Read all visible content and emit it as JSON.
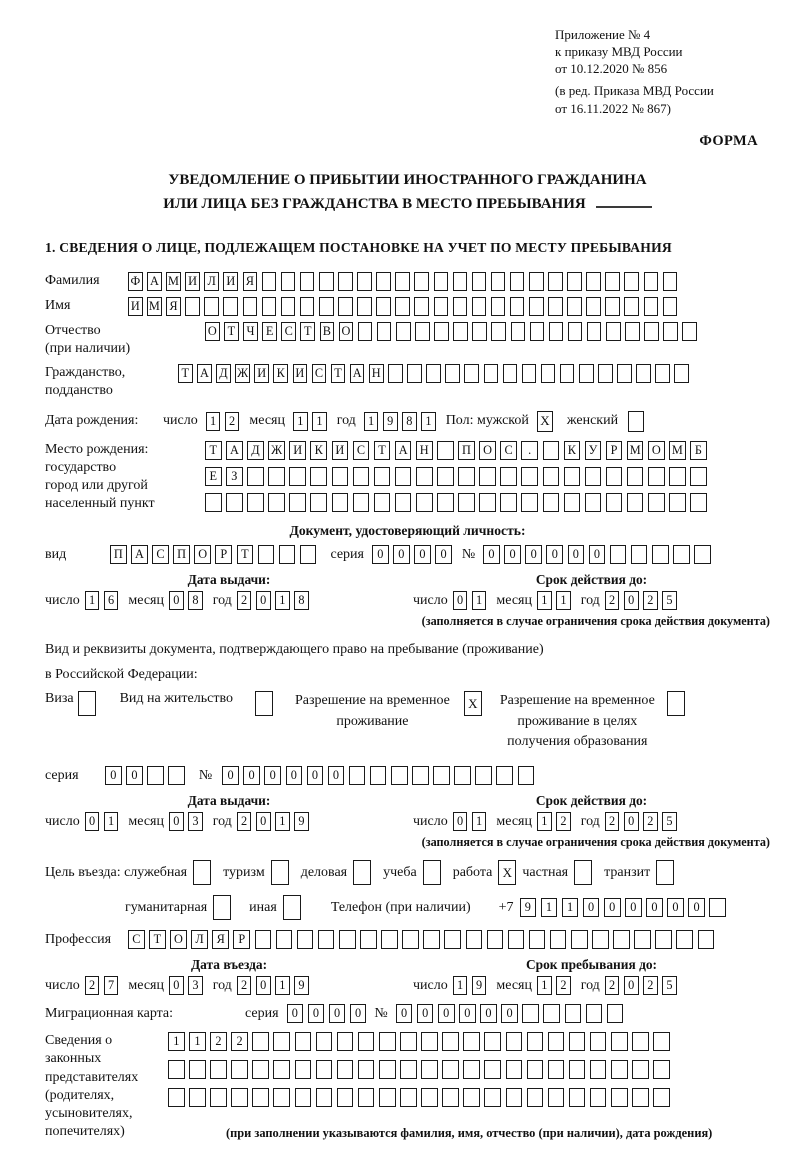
{
  "header": {
    "ref_lines": "Приложение № 4\nк приказу МВД России\nот 10.12.2020 № 856",
    "ref_lines2": "(в ред. Приказа МВД России\nот 16.11.2022 № 867)",
    "forma": "ФОРМА"
  },
  "title": {
    "line1": "УВЕДОМЛЕНИЕ О ПРИБЫТИИ ИНОСТРАННОГО ГРАЖДАНИНА",
    "line2": "ИЛИ ЛИЦА БЕЗ ГРАЖДАНСТВА В МЕСТО ПРЕБЫВАНИЯ",
    "section1": "1. СВЕДЕНИЯ О ЛИЦЕ, ПОДЛЕЖАЩЕМ ПОСТАНОВКЕ НА УЧЕТ ПО МЕСТУ ПРЕБЫВАНИЯ"
  },
  "labels": {
    "surname": "Фамилия",
    "name": "Имя",
    "patronymic": "Отчество\n(при наличии)",
    "citizenship": "Гражданство,\nподданство",
    "birth_date": "Дата рождения:",
    "day": "число",
    "month": "месяц",
    "year": "год",
    "sex_male": "Пол: мужской",
    "sex_female": "женский",
    "birth_place": "Место рождения:\nгосударство\nгород или другой\nнаселенный пункт",
    "identity_doc_header": "Документ, удостоверяющий личность:",
    "doc_type": "вид",
    "series": "серия",
    "number": "№",
    "issue_date": "Дата выдачи:",
    "valid_until": "Срок действия до:",
    "valid_note": "(заполняется в случае ограничения срока действия документа)",
    "permit_intro1": "Вид и реквизиты документа, подтверждающего право на пребывание (проживание)",
    "permit_intro2": "в Российской Федерации:",
    "visa": "Виза",
    "residence_permit": "Вид на жительство",
    "temp_residence": "Разрешение на временное\nпроживание",
    "temp_residence_edu": "Разрешение на временное\nпроживание в целях\nполучения образования",
    "purpose": "Цель въезда: служебная",
    "tourism": "туризм",
    "business": "деловая",
    "study": "учеба",
    "work": "работа",
    "private": "частная",
    "transit": "транзит",
    "humanitarian": "гуманитарная",
    "other": "иная",
    "phone": "Телефон (при наличии)",
    "phone_prefix": "+7",
    "profession": "Профессия",
    "entry_date": "Дата въезда:",
    "stay_until": "Срок пребывания до:",
    "migration_card": "Миграционная карта:",
    "representatives": "Сведения о\nзаконных\nпредставителях\n(родителях,\nусыновителях,\nпопечителях)",
    "representatives_note": "(при заполнении указываются фамилия, имя, отчество (при наличии), дата рождения)"
  },
  "values": {
    "surname": {
      "value": "ФАМИЛИЯ",
      "boxes": 29
    },
    "name": {
      "value": "ИМЯ",
      "boxes": 29
    },
    "patronymic": {
      "value": "ОТЧЕСТВО",
      "boxes": 26
    },
    "citizenship": {
      "value": "ТАДЖИКИСТАН",
      "boxes": 27
    },
    "birth_day": {
      "value": "12",
      "boxes": 2
    },
    "birth_month": {
      "value": "11",
      "boxes": 2
    },
    "birth_year": {
      "value": "1981",
      "boxes": 4
    },
    "sex_male": "X",
    "sex_female": "",
    "birth_place1": {
      "value": "ТАДЖИКИСТАН ПОС. КУРМОМБ",
      "boxes": 24
    },
    "birth_place2": {
      "value": "ЕЗ",
      "boxes": 24
    },
    "birth_place3": {
      "value": "",
      "boxes": 24
    },
    "doc_type": {
      "value": "ПАСПОРТ",
      "boxes": 10
    },
    "doc_series": {
      "value": "0000",
      "boxes": 4
    },
    "doc_number": {
      "value": "000000",
      "boxes": 11
    },
    "doc_issue_day": {
      "value": "16",
      "boxes": 2
    },
    "doc_issue_month": {
      "value": "08",
      "boxes": 2
    },
    "doc_issue_year": {
      "value": "2018",
      "boxes": 4
    },
    "doc_until_day": {
      "value": "01",
      "boxes": 2
    },
    "doc_until_month": {
      "value": "11",
      "boxes": 2
    },
    "doc_until_year": {
      "value": "2025",
      "boxes": 4
    },
    "visa_cb": "",
    "residence_cb": "",
    "temp_residence_cb": "X",
    "temp_residence_edu_cb": "",
    "permit_series": {
      "value": "00",
      "boxes": 4
    },
    "permit_number": {
      "value": "000000",
      "boxes": 15
    },
    "permit_issue_day": {
      "value": "01",
      "boxes": 2
    },
    "permit_issue_month": {
      "value": "03",
      "boxes": 2
    },
    "permit_issue_year": {
      "value": "2019",
      "boxes": 4
    },
    "permit_until_day": {
      "value": "01",
      "boxes": 2
    },
    "permit_until_month": {
      "value": "12",
      "boxes": 2
    },
    "permit_until_year": {
      "value": "2025",
      "boxes": 4
    },
    "purpose_official": "",
    "purpose_tourism": "",
    "purpose_business": "",
    "purpose_study": "",
    "purpose_work": "X",
    "purpose_private": "",
    "purpose_transit": "",
    "purpose_humanitarian": "",
    "purpose_other": "",
    "phone": {
      "value": "911000000",
      "boxes": 10
    },
    "profession": {
      "value": "СТОЛЯР",
      "boxes": 28
    },
    "entry_day": {
      "value": "27",
      "boxes": 2
    },
    "entry_month": {
      "value": "03",
      "boxes": 2
    },
    "entry_year": {
      "value": "2019",
      "boxes": 4
    },
    "stay_day": {
      "value": "19",
      "boxes": 2
    },
    "stay_month": {
      "value": "12",
      "boxes": 2
    },
    "stay_year": {
      "value": "2025",
      "boxes": 4
    },
    "mig_series": {
      "value": "0000",
      "boxes": 4
    },
    "mig_number": {
      "value": "000000",
      "boxes": 11
    },
    "rep1": {
      "value": "1122",
      "boxes": 24
    },
    "rep2": {
      "value": "",
      "boxes": 24
    },
    "rep3": {
      "value": "",
      "boxes": 24
    }
  }
}
